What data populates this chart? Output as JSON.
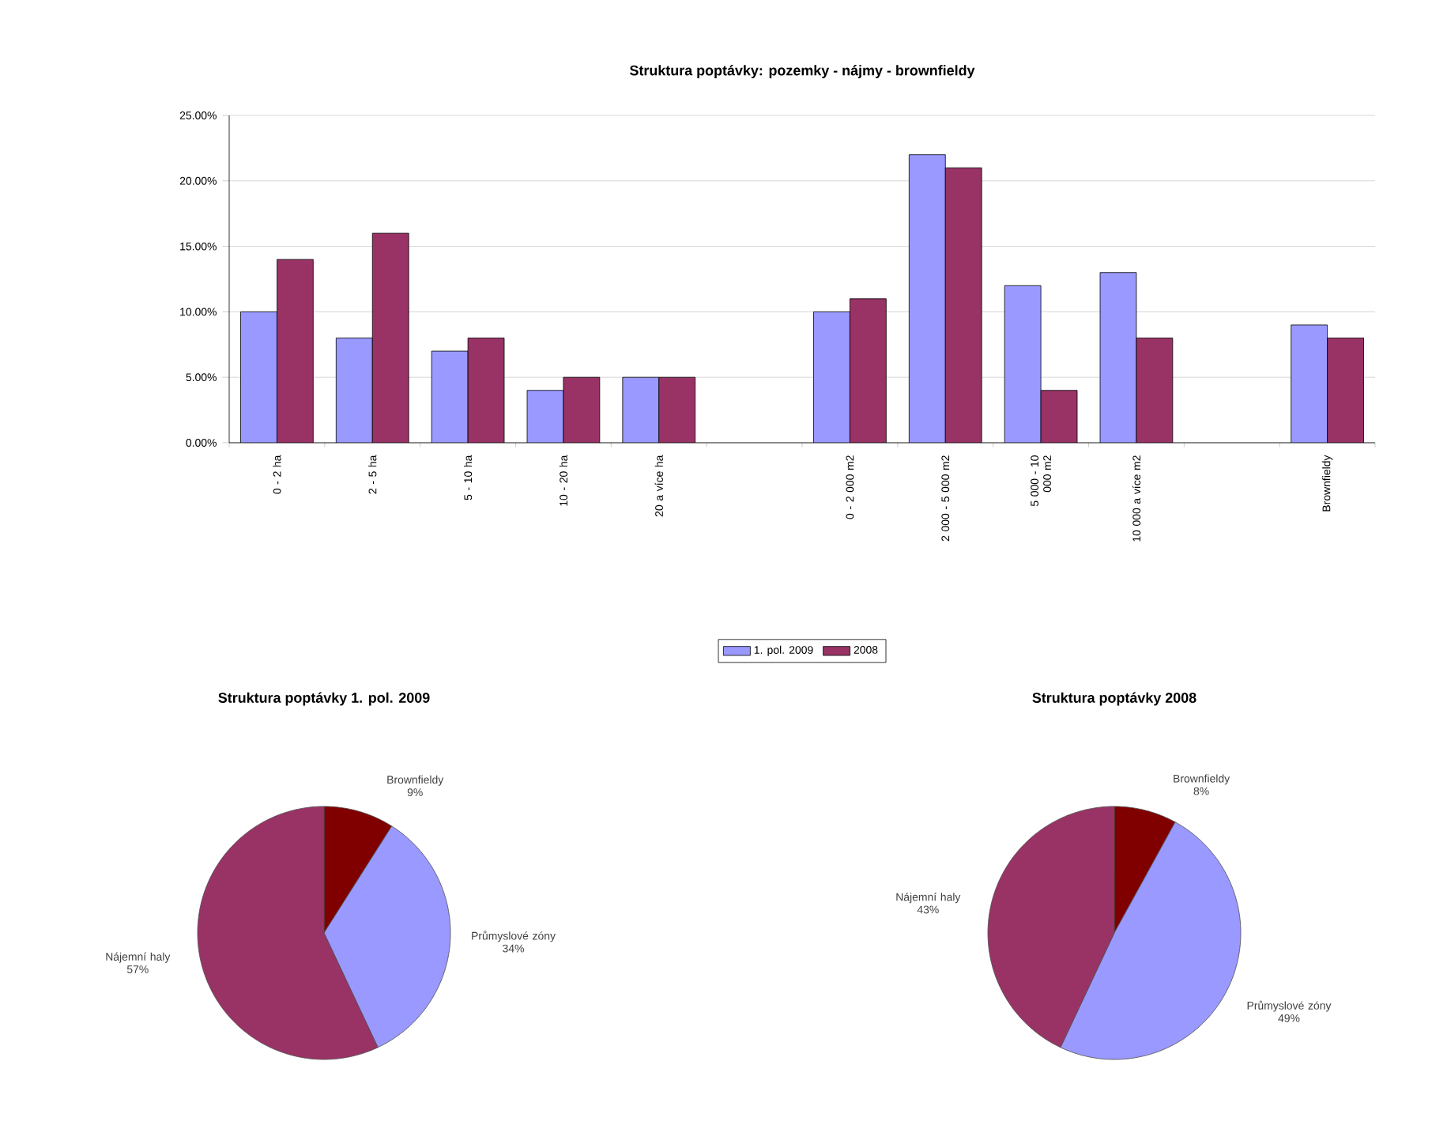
{
  "chart_data": [
    {
      "type": "bar",
      "title": "Struktura poptávky: pozemky - nájmy - brownfieldy",
      "categories": [
        "0 - 2 ha",
        "2 - 5 ha",
        "5 - 10 ha",
        "10 - 20 ha",
        "20 a více ha",
        null,
        "0 - 2 000 m2",
        "2 000 - 5 000 m2",
        "5 000 - 10 000 m2",
        "10 000 a více m2",
        null,
        "Brownfieldy"
      ],
      "series": [
        {
          "name": "1. pol. 2009",
          "color": "#9999ff",
          "values": [
            10,
            8,
            7,
            4,
            5,
            null,
            10,
            22,
            12,
            13,
            null,
            9
          ]
        },
        {
          "name": "2008",
          "color": "#993366",
          "values": [
            14,
            16,
            8,
            5,
            5,
            null,
            11,
            21,
            4,
            8,
            null,
            8
          ]
        }
      ],
      "ylim": [
        0,
        25
      ],
      "yticks": [
        {
          "value": 0,
          "label": "0.00%"
        },
        {
          "value": 5,
          "label": "5.00%"
        },
        {
          "value": 10,
          "label": "10.00%"
        },
        {
          "value": 15,
          "label": "15.00%"
        },
        {
          "value": 20,
          "label": "20.00%"
        },
        {
          "value": 25,
          "label": "25.00%"
        }
      ],
      "grid": "y",
      "legend": "bottom"
    },
    {
      "type": "pie",
      "title": "Struktura poptávky 1. pol. 2009",
      "categories": [
        "Brownfieldy",
        "Průmyslové zóny",
        "Nájemní haly"
      ],
      "values": [
        9,
        34,
        57
      ],
      "colors": [
        "#800000",
        "#9999ff",
        "#993366"
      ],
      "value_labels": [
        "9%",
        "34%",
        "57%"
      ]
    },
    {
      "type": "pie",
      "title": "Struktura poptávky 2008",
      "categories": [
        "Brownfieldy",
        "Průmyslové zóny",
        "Nájemní haly"
      ],
      "values": [
        8,
        49,
        43
      ],
      "colors": [
        "#800000",
        "#9999ff",
        "#993366"
      ],
      "value_labels": [
        "8%",
        "49%",
        "43%"
      ]
    }
  ]
}
